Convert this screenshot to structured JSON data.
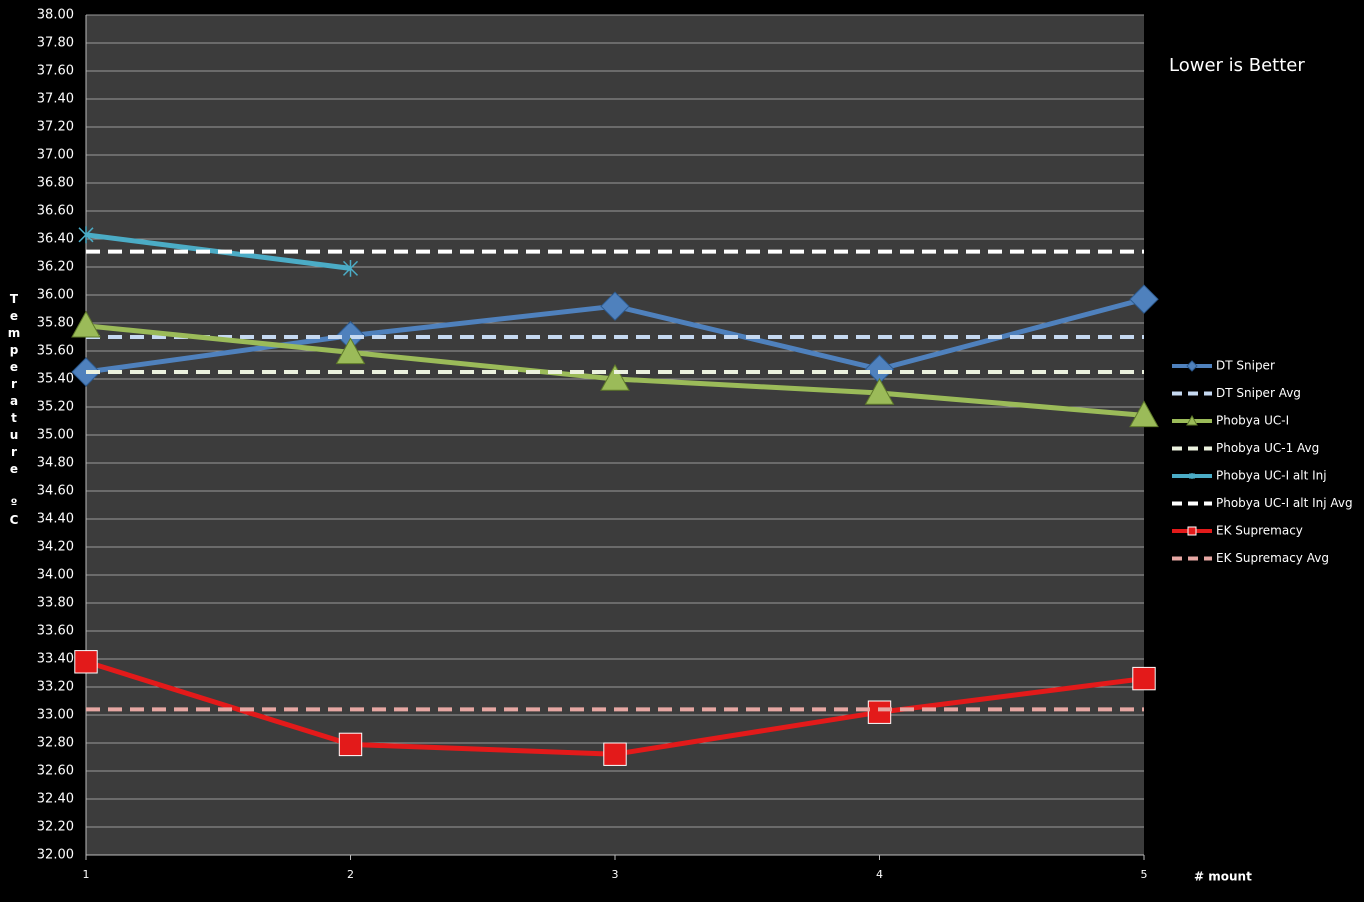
{
  "chart_data": {
    "type": "line",
    "annotation": "Lower is Better",
    "x_label": "# mount",
    "y_label": "Temperature ºC",
    "x": [
      1,
      2,
      3,
      4,
      5
    ],
    "xlim": [
      1,
      5
    ],
    "xticks": [
      1,
      2,
      3,
      4,
      5
    ],
    "ylim": [
      32,
      38
    ],
    "yticks": [
      {
        "value": 32,
        "label": "32.00"
      },
      {
        "value": 32.2,
        "label": "32.20"
      },
      {
        "value": 32.4,
        "label": "32.40"
      },
      {
        "value": 32.6,
        "label": "32.60"
      },
      {
        "value": 32.8,
        "label": "32.80"
      },
      {
        "value": 33,
        "label": "33.00"
      },
      {
        "value": 33.2,
        "label": "33.20"
      },
      {
        "value": 33.4,
        "label": "33.40"
      },
      {
        "value": 33.6,
        "label": "33.60"
      },
      {
        "value": 33.8,
        "label": "33.80"
      },
      {
        "value": 34,
        "label": "34.00"
      },
      {
        "value": 34.2,
        "label": "34.20"
      },
      {
        "value": 34.4,
        "label": "34.40"
      },
      {
        "value": 34.6,
        "label": "34.60"
      },
      {
        "value": 34.8,
        "label": "34.80"
      },
      {
        "value": 35,
        "label": "35.00"
      },
      {
        "value": 35.2,
        "label": "35.20"
      },
      {
        "value": 35.4,
        "label": "35.40"
      },
      {
        "value": 35.6,
        "label": "35.60"
      },
      {
        "value": 35.8,
        "label": "35.80"
      },
      {
        "value": 36,
        "label": "36.00"
      },
      {
        "value": 36.2,
        "label": "36.20"
      },
      {
        "value": 36.4,
        "label": "36.40"
      },
      {
        "value": 36.6,
        "label": "36.60"
      },
      {
        "value": 36.8,
        "label": "36.80"
      },
      {
        "value": 37,
        "label": "37.00"
      },
      {
        "value": 37.2,
        "label": "37.20"
      },
      {
        "value": 37.4,
        "label": "37.40"
      },
      {
        "value": 37.6,
        "label": "37.60"
      },
      {
        "value": 37.8,
        "label": "37.80"
      },
      {
        "value": 38,
        "label": "38.00"
      }
    ],
    "grid": true,
    "legend": "right",
    "series": [
      {
        "name": "DT Sniper",
        "color": "#4f81bd",
        "marker": "diamond",
        "dashed": false,
        "values": [
          35.45,
          35.71,
          35.92,
          35.47,
          35.97
        ]
      },
      {
        "name": "DT Sniper Avg",
        "color": "#c6d9f1",
        "marker": "none",
        "dashed": true,
        "values": [
          35.7,
          35.7,
          35.7,
          35.7,
          35.7
        ]
      },
      {
        "name": "Phobya UC-I",
        "color": "#9bbb59",
        "marker": "triangle",
        "dashed": false,
        "values": [
          35.78,
          35.59,
          35.4,
          35.3,
          35.14
        ]
      },
      {
        "name": "Phobya UC-1 Avg",
        "color": "#ebf1de",
        "marker": "none",
        "dashed": true,
        "values": [
          35.45,
          35.45,
          35.45,
          35.45,
          35.45
        ]
      },
      {
        "name": "Phobya UC-I alt Inj",
        "color": "#4bacc6",
        "marker": "star",
        "dashed": false,
        "values": [
          36.43,
          36.19,
          null,
          null,
          null
        ]
      },
      {
        "name": "Phobya UC-I alt Inj Avg",
        "color": "#ffffff",
        "marker": "none",
        "dashed": true,
        "values": [
          36.31,
          36.31,
          36.31,
          36.31,
          36.31
        ]
      },
      {
        "name": "EK Supremacy",
        "color": "#e31a1a",
        "marker": "square",
        "dashed": false,
        "values": [
          33.38,
          32.79,
          32.72,
          33.02,
          33.26
        ]
      },
      {
        "name": "EK Supremacy Avg",
        "color": "#e6a7a3",
        "marker": "none",
        "dashed": true,
        "values": [
          33.04,
          33.04,
          33.04,
          33.04,
          33.04
        ]
      }
    ]
  }
}
